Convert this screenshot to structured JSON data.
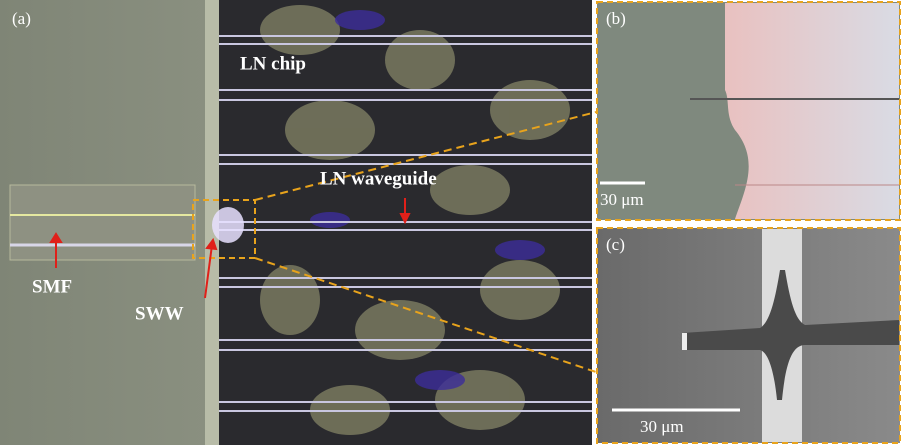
{
  "panels": {
    "a": {
      "label": "(a)",
      "chip": "LN chip",
      "waveguide": "LN waveguide",
      "fiber": "SMF",
      "wire": "SWW"
    },
    "b": {
      "label": "(b)",
      "scale": "30 μm"
    },
    "c": {
      "label": "(c)",
      "scale": "30 μm"
    }
  }
}
